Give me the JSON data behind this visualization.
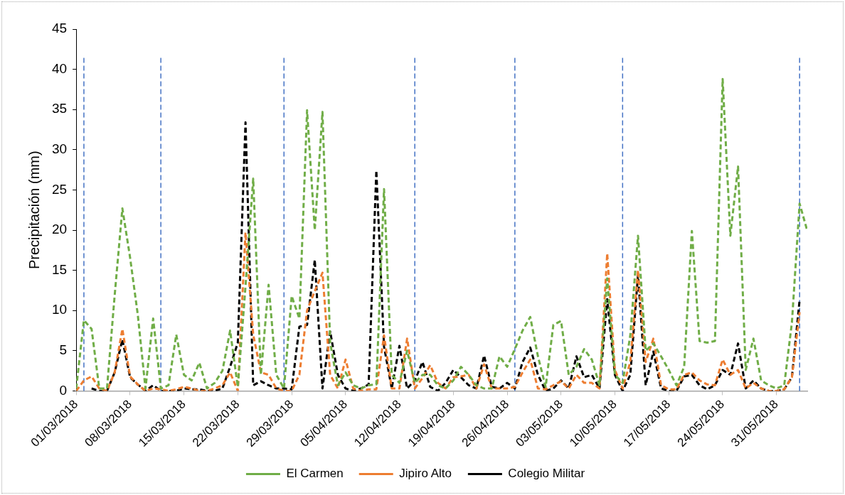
{
  "chart_data": {
    "type": "line",
    "ylabel": "Precipitación (mm)",
    "x": [
      "2018-03-01",
      "2018-03-02",
      "2018-03-03",
      "2018-03-04",
      "2018-03-05",
      "2018-03-06",
      "2018-03-07",
      "2018-03-08",
      "2018-03-09",
      "2018-03-10",
      "2018-03-11",
      "2018-03-12",
      "2018-03-13",
      "2018-03-14",
      "2018-03-15",
      "2018-03-16",
      "2018-03-17",
      "2018-03-18",
      "2018-03-19",
      "2018-03-20",
      "2018-03-21",
      "2018-03-22",
      "2018-03-23",
      "2018-03-24",
      "2018-03-25",
      "2018-03-26",
      "2018-03-27",
      "2018-03-28",
      "2018-03-29",
      "2018-03-30",
      "2018-03-31",
      "2018-04-01",
      "2018-04-02",
      "2018-04-03",
      "2018-04-04",
      "2018-04-05",
      "2018-04-06",
      "2018-04-07",
      "2018-04-08",
      "2018-04-09",
      "2018-04-10",
      "2018-04-11",
      "2018-04-12",
      "2018-04-13",
      "2018-04-14",
      "2018-04-15",
      "2018-04-16",
      "2018-04-17",
      "2018-04-18",
      "2018-04-19",
      "2018-04-20",
      "2018-04-21",
      "2018-04-22",
      "2018-04-23",
      "2018-04-24",
      "2018-04-25",
      "2018-04-26",
      "2018-04-27",
      "2018-04-28",
      "2018-04-29",
      "2018-04-30",
      "2018-05-01",
      "2018-05-02",
      "2018-05-03",
      "2018-05-04",
      "2018-05-05",
      "2018-05-06",
      "2018-05-07",
      "2018-05-08",
      "2018-05-09",
      "2018-05-10",
      "2018-05-11",
      "2018-05-12",
      "2018-05-13",
      "2018-05-14",
      "2018-05-15",
      "2018-05-16",
      "2018-05-17",
      "2018-05-18",
      "2018-05-19",
      "2018-05-20",
      "2018-05-21",
      "2018-05-22",
      "2018-05-23",
      "2018-05-24",
      "2018-05-25",
      "2018-05-26",
      "2018-05-27",
      "2018-05-28",
      "2018-05-29",
      "2018-05-30",
      "2018-05-31",
      "2018-06-01",
      "2018-06-02",
      "2018-06-03",
      "2018-06-04"
    ],
    "series": [
      {
        "name": "El Carmen",
        "color": "#70ad47",
        "values": [
          0.3,
          8.8,
          7.7,
          0.3,
          0.3,
          11.9,
          22.7,
          16.6,
          9.5,
          0.3,
          9,
          0.3,
          0.7,
          7,
          2,
          1.3,
          3.5,
          0.3,
          1,
          2.5,
          7.5,
          0.5,
          13,
          26.4,
          2,
          13.2,
          2,
          0.3,
          11.8,
          9,
          34.9,
          20,
          34.7,
          6,
          0.7,
          2.3,
          0.7,
          0.3,
          0.7,
          0.8,
          25.1,
          2,
          1,
          5,
          1,
          2,
          2,
          0.7,
          0.3,
          1.3,
          3,
          2,
          0.7,
          0.3,
          0.3,
          4.3,
          3,
          5.2,
          7.5,
          9.2,
          4.3,
          0.5,
          8.2,
          8.7,
          2,
          3,
          5.2,
          3.9,
          0.7,
          14,
          2,
          1,
          6.9,
          19.3,
          5,
          5.9,
          4.3,
          2.6,
          0.7,
          3,
          19.9,
          6.2,
          6,
          6.2,
          38.8,
          19.3,
          27.9,
          2.6,
          6.5,
          1.3,
          0.7,
          0.3,
          0.7,
          8.5,
          23.3,
          19.9
        ]
      },
      {
        "name": "Jipiro Alto",
        "color": "#ed7d31",
        "values": [
          0,
          1.3,
          1.8,
          0.3,
          0,
          2.3,
          7.7,
          1.8,
          0.8,
          0,
          0.3,
          0.2,
          0,
          0.2,
          0.5,
          0.3,
          0,
          0,
          0.3,
          0.7,
          2.3,
          0,
          19.7,
          7,
          2.3,
          2,
          0.3,
          0,
          0,
          2,
          10,
          12.4,
          14.7,
          2,
          0.3,
          3.9,
          0.3,
          0,
          0.2,
          0.2,
          6.9,
          0.3,
          0.3,
          6.5,
          0.3,
          1.6,
          3.2,
          1,
          0.3,
          1.7,
          1.8,
          2,
          0.3,
          3.3,
          0.3,
          0.3,
          0.3,
          0.5,
          2.3,
          3.9,
          0.3,
          0.2,
          0.7,
          1.2,
          0.3,
          2,
          1,
          1,
          0.3,
          17.1,
          2.6,
          0.3,
          3.6,
          15,
          3.6,
          6.5,
          0.7,
          0.2,
          0.2,
          2,
          2.3,
          1.3,
          0.8,
          0.7,
          3.9,
          2,
          2.6,
          0.3,
          1,
          0.3,
          0,
          0,
          0.2,
          1.7,
          9.8,
          null
        ]
      },
      {
        "name": "Colegio Militar",
        "color": "#000000",
        "values": [
          null,
          null,
          0.3,
          0,
          0,
          2.3,
          6.4,
          1.7,
          0.8,
          0,
          0.7,
          0,
          0,
          0,
          0.3,
          0.2,
          0.2,
          0,
          0,
          0.3,
          3,
          6,
          33.4,
          0.7,
          1.2,
          0.7,
          0.3,
          0.3,
          0.2,
          8,
          8.2,
          16.3,
          0.3,
          7.4,
          2,
          0.3,
          0,
          0.3,
          0.8,
          27.4,
          5.5,
          0.3,
          5.6,
          0.3,
          1.3,
          3.6,
          0.5,
          0,
          1,
          2.6,
          1.7,
          0.7,
          0.3,
          4.4,
          0.5,
          0.3,
          1,
          0.3,
          3.6,
          5.4,
          2,
          0,
          0.3,
          1.3,
          0.3,
          4.3,
          1.7,
          2,
          0.3,
          11.4,
          2,
          0,
          2,
          14.4,
          0.7,
          4.9,
          0.3,
          0,
          0,
          1.8,
          2,
          0.7,
          0.2,
          0.7,
          2.6,
          2,
          5.9,
          0.3,
          1.3,
          0.3,
          0,
          0,
          0.2,
          1.7,
          11.3,
          null
        ]
      }
    ],
    "xlim": [
      "2018-03-01",
      "2018-06-04"
    ],
    "xticks": [
      {
        "value": "2018-03-01",
        "label": "01/03/2018"
      },
      {
        "value": "2018-03-08",
        "label": "08/03/2018"
      },
      {
        "value": "2018-03-15",
        "label": "15/03/2018"
      },
      {
        "value": "2018-03-22",
        "label": "22/03/2018"
      },
      {
        "value": "2018-03-29",
        "label": "29/03/2018"
      },
      {
        "value": "2018-04-05",
        "label": "05/04/2018"
      },
      {
        "value": "2018-04-12",
        "label": "12/04/2018"
      },
      {
        "value": "2018-04-19",
        "label": "19/04/2018"
      },
      {
        "value": "2018-04-26",
        "label": "26/04/2018"
      },
      {
        "value": "2018-05-03",
        "label": "03/05/2018"
      },
      {
        "value": "2018-05-10",
        "label": "10/05/2018"
      },
      {
        "value": "2018-05-17",
        "label": "17/05/2018"
      },
      {
        "value": "2018-05-24",
        "label": "24/05/2018"
      },
      {
        "value": "2018-05-31",
        "label": "31/05/2018"
      }
    ],
    "ylim": [
      0,
      45
    ],
    "yticks": [
      0,
      5,
      10,
      15,
      20,
      25,
      30,
      35,
      40,
      45
    ],
    "ref_lines": [
      {
        "axis": "x",
        "value": "2018-03-02",
        "color": "#4472c4",
        "line_style": "dashed"
      },
      {
        "axis": "x",
        "value": "2018-03-12",
        "color": "#4472c4",
        "line_style": "dashed"
      },
      {
        "axis": "x",
        "value": "2018-03-28",
        "color": "#4472c4",
        "line_style": "dashed"
      },
      {
        "axis": "x",
        "value": "2018-04-14",
        "color": "#4472c4",
        "line_style": "dashed"
      },
      {
        "axis": "x",
        "value": "2018-04-27",
        "color": "#4472c4",
        "line_style": "dashed"
      },
      {
        "axis": "x",
        "value": "2018-05-11",
        "color": "#4472c4",
        "line_style": "dashed"
      },
      {
        "axis": "x",
        "value": "2018-06-03",
        "color": "#4472c4",
        "line_style": "dashed"
      }
    ],
    "grid": false,
    "legend": "bottom",
    "marker": "none",
    "line_style": "dashed"
  }
}
